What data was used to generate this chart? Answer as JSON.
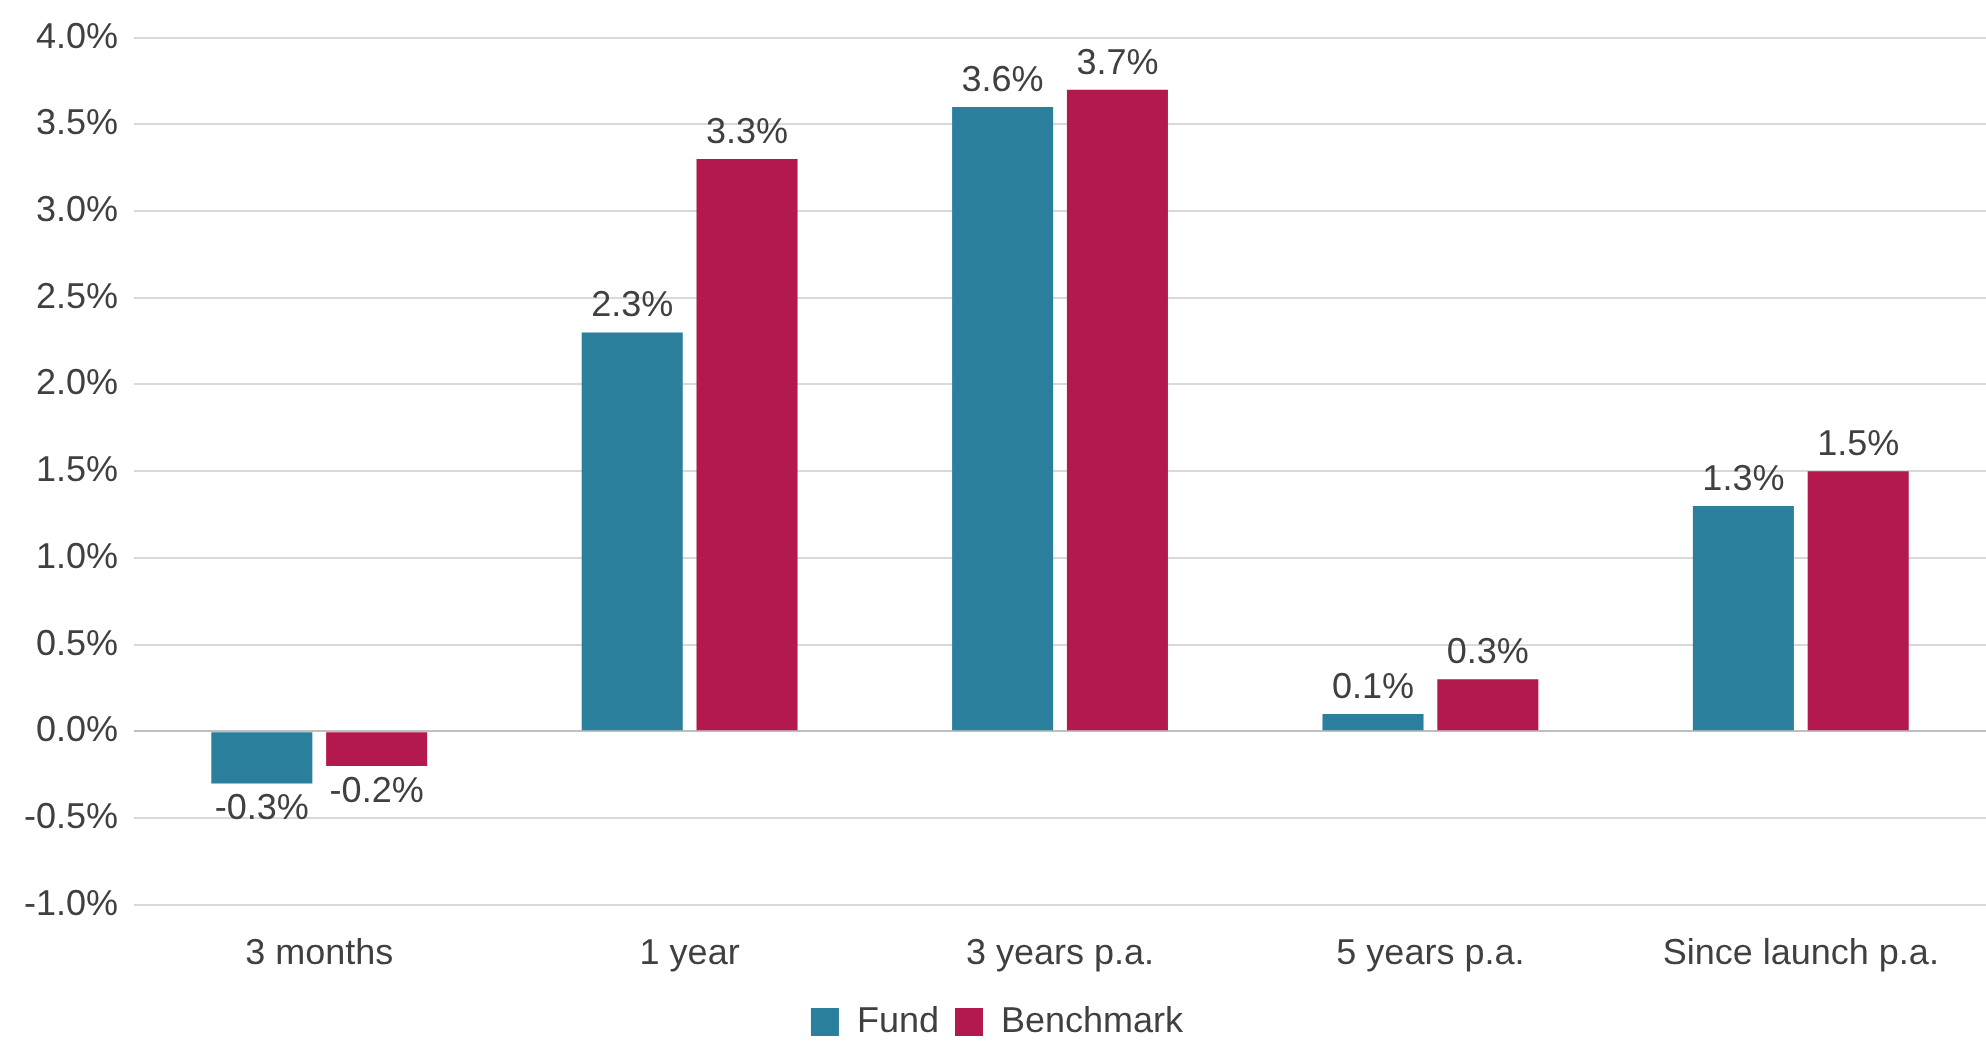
{
  "chart_data": {
    "type": "bar",
    "categories": [
      "3 months",
      "1 year",
      "3 years p.a.",
      "5 years p.a.",
      "Since launch p.a."
    ],
    "series": [
      {
        "name": "Fund",
        "color": "#2a7f9c",
        "values": [
          -0.3,
          2.3,
          3.6,
          0.1,
          1.3
        ],
        "value_labels": [
          "-0.3%",
          "2.3%",
          "3.6%",
          "0.1%",
          "1.3%"
        ]
      },
      {
        "name": "Benchmark",
        "color": "#b3184e",
        "values": [
          -0.2,
          3.3,
          3.7,
          0.3,
          1.5
        ],
        "value_labels": [
          "-0.2%",
          "3.3%",
          "3.7%",
          "0.3%",
          "1.5%"
        ]
      }
    ],
    "ylim": [
      -1,
      4
    ],
    "yticks": [
      {
        "value": -1,
        "label": "-1.0%"
      },
      {
        "value": -0.5,
        "label": "-0.5%"
      },
      {
        "value": 0,
        "label": "0.0%"
      },
      {
        "value": 0.5,
        "label": "0.5%"
      },
      {
        "value": 1,
        "label": "1.0%"
      },
      {
        "value": 1.5,
        "label": "1.5%"
      },
      {
        "value": 2,
        "label": "2.0%"
      },
      {
        "value": 2.5,
        "label": "2.5%"
      },
      {
        "value": 3,
        "label": "3.0%"
      },
      {
        "value": 3.5,
        "label": "3.5%"
      },
      {
        "value": 4,
        "label": "4.0%"
      }
    ],
    "grid": "y",
    "legend": "bottom"
  }
}
